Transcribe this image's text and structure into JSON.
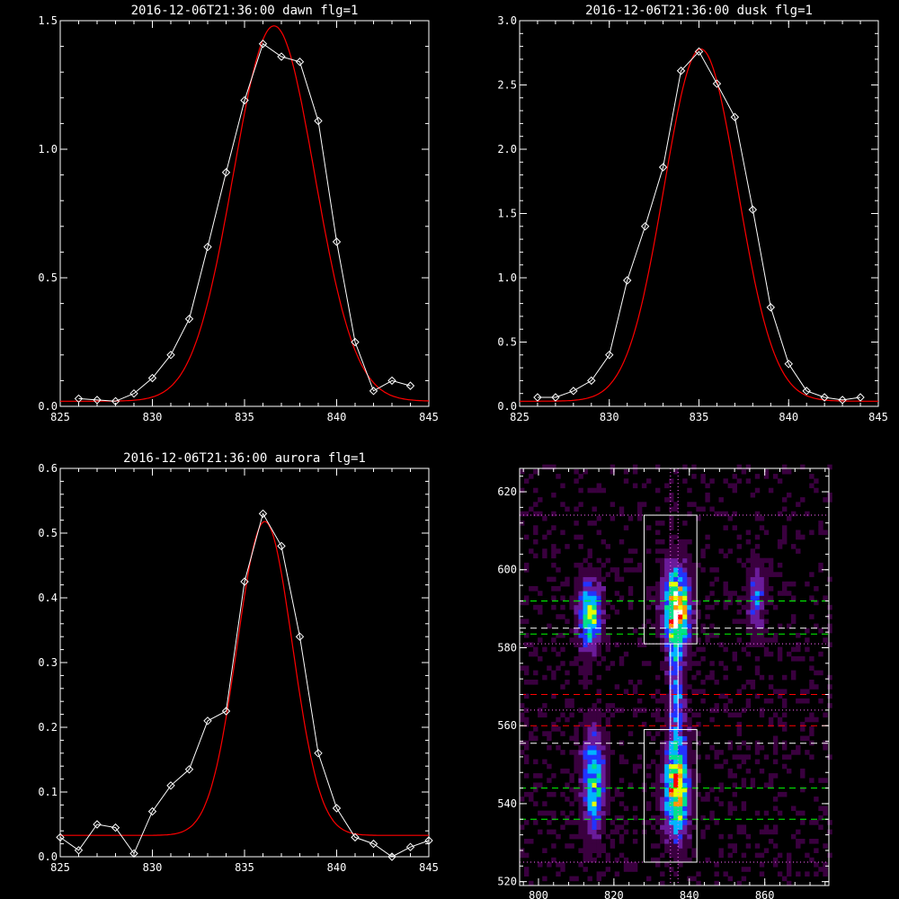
{
  "colors": {
    "background": "#000000",
    "axes": "#ffffff",
    "data_line": "#ffffff",
    "fit_line": "#ff0000"
  },
  "chart_data": [
    {
      "type": "line",
      "title": "2016-12-06T21:36:00 dawn flg=1",
      "xlim": [
        825,
        845
      ],
      "ylim": [
        0,
        1.5
      ],
      "xticks": [
        "825",
        "830",
        "835",
        "840",
        "845"
      ],
      "yticks": [
        "0.0",
        "0.5",
        "1.0",
        "1.5"
      ],
      "series": [
        {
          "marker": "diamond",
          "color": "#ffffff",
          "x": [
            826,
            827,
            828,
            829,
            830,
            831,
            832,
            833,
            834,
            835,
            836,
            837,
            838,
            839,
            840,
            841,
            842,
            843,
            844
          ],
          "y": [
            0.03,
            0.025,
            0.02,
            0.05,
            0.11,
            0.2,
            0.34,
            0.62,
            0.91,
            1.19,
            1.41,
            1.36,
            1.34,
            1.11,
            0.64,
            0.25,
            0.06,
            0.1,
            0.08
          ]
        },
        {
          "fit": "gaussian",
          "color": "#ff0000",
          "amplitude": 1.46,
          "center": 836.6,
          "sigma": 2.2,
          "offset": 0.02
        }
      ]
    },
    {
      "type": "line",
      "title": "2016-12-06T21:36:00 dusk flg=1",
      "xlim": [
        825,
        845
      ],
      "ylim": [
        0,
        3
      ],
      "xticks": [
        "825",
        "830",
        "835",
        "840",
        "845"
      ],
      "yticks": [
        "0.0",
        "0.5",
        "1.0",
        "1.5",
        "2.0",
        "2.5",
        "3.0"
      ],
      "series": [
        {
          "marker": "diamond",
          "color": "#ffffff",
          "x": [
            826,
            827,
            828,
            829,
            830,
            831,
            832,
            833,
            834,
            835,
            836,
            837,
            838,
            839,
            840,
            841,
            842,
            843,
            844
          ],
          "y": [
            0.07,
            0.07,
            0.12,
            0.2,
            0.4,
            0.98,
            1.4,
            1.86,
            2.61,
            2.76,
            2.51,
            2.25,
            1.53,
            0.77,
            0.33,
            0.12,
            0.07,
            0.05,
            0.07
          ]
        },
        {
          "fit": "gaussian",
          "color": "#ff0000",
          "amplitude": 2.74,
          "center": 835.1,
          "sigma": 2.05,
          "offset": 0.04
        }
      ]
    },
    {
      "type": "line",
      "title": "2016-12-06T21:36:00 aurora flg=1",
      "xlim": [
        825,
        845
      ],
      "ylim": [
        0,
        0.6
      ],
      "xticks": [
        "825",
        "830",
        "835",
        "840",
        "845"
      ],
      "yticks": [
        "0.0",
        "0.1",
        "0.2",
        "0.3",
        "0.4",
        "0.5",
        "0.6"
      ],
      "series": [
        {
          "marker": "diamond",
          "color": "#ffffff",
          "x": [
            825,
            826,
            827,
            828,
            829,
            830,
            831,
            832,
            833,
            834,
            835,
            836,
            837,
            838,
            839,
            840,
            841,
            842,
            843,
            844,
            845
          ],
          "y": [
            0.03,
            0.01,
            0.05,
            0.045,
            0.005,
            0.07,
            0.11,
            0.135,
            0.21,
            0.225,
            0.425,
            0.53,
            0.48,
            0.34,
            0.16,
            0.075,
            0.03,
            0.02,
            0.0,
            0.015,
            0.025
          ]
        },
        {
          "fit": "gaussian",
          "color": "#ff0000",
          "amplitude": 0.485,
          "center": 836.1,
          "sigma": 1.5,
          "offset": 0.033
        }
      ]
    },
    {
      "type": "heatmap",
      "title": "",
      "xlim": [
        795,
        877
      ],
      "ylim": [
        519,
        626
      ],
      "xticks": [
        "800",
        "820",
        "840",
        "860"
      ],
      "yticks": [
        "520",
        "540",
        "560",
        "580",
        "600",
        "620"
      ],
      "colormap": [
        "#000000",
        "#3a003f",
        "#6a1b9a",
        "#2233ff",
        "#00b4ff",
        "#00e08a",
        "#e6ff00",
        "#ff9900",
        "#ff0000",
        "#ffffff"
      ],
      "blobs": [
        {
          "x": 813,
          "y": 588,
          "sx": 2.0,
          "sy": 6.0,
          "amp": 0.62
        },
        {
          "x": 836,
          "y": 589,
          "sx": 2.2,
          "sy": 7.0,
          "amp": 1.0
        },
        {
          "x": 857,
          "y": 592,
          "sx": 1.5,
          "sy": 6.0,
          "amp": 0.32
        },
        {
          "x": 814,
          "y": 545,
          "sx": 2.0,
          "sy": 9.0,
          "amp": 0.55
        },
        {
          "x": 836,
          "y": 543,
          "sx": 2.2,
          "sy": 8.0,
          "amp": 0.82
        },
        {
          "x": 836,
          "y": 566,
          "sx": 1.4,
          "sy": 10.0,
          "amp": 0.35
        }
      ],
      "boxes": [
        {
          "x0": 828,
          "x1": 842,
          "y0": 581,
          "y1": 614,
          "color": "#ffffff"
        },
        {
          "x0": 828,
          "x1": 842,
          "y0": 525,
          "y1": 559,
          "color": "#ffffff"
        }
      ],
      "hlines": [
        {
          "y": 614,
          "color": "#ff66ff",
          "style": "dotted"
        },
        {
          "y": 592,
          "color": "#00ff00",
          "style": "dashed"
        },
        {
          "y": 585,
          "color": "#ffffff",
          "style": "dashed"
        },
        {
          "y": 583.5,
          "color": "#00ff00",
          "style": "dashed"
        },
        {
          "y": 581,
          "color": "#ff66ff",
          "style": "dotted"
        },
        {
          "y": 568,
          "color": "#ff0000",
          "style": "dashed"
        },
        {
          "y": 564,
          "color": "#ff66ff",
          "style": "dotted"
        },
        {
          "y": 560,
          "color": "#ff0000",
          "style": "dashed"
        },
        {
          "y": 555.5,
          "color": "#ffffff",
          "style": "dashed"
        },
        {
          "y": 544,
          "color": "#00ff00",
          "style": "dashed"
        },
        {
          "y": 536,
          "color": "#00ff00",
          "style": "dashed"
        },
        {
          "y": 525,
          "color": "#ff66ff",
          "style": "dotted"
        }
      ],
      "vlines": [
        {
          "x": 835,
          "color": "#ff66ff",
          "style": "dotted"
        },
        {
          "x": 837,
          "color": "#ff66ff",
          "style": "dotted"
        }
      ],
      "inner_vlines": [
        {
          "x": 835,
          "y0": 559,
          "y1": 581,
          "color": "#ffffff"
        },
        {
          "x": 837,
          "y0": 559,
          "y1": 581,
          "color": "#ffffff"
        }
      ]
    }
  ]
}
